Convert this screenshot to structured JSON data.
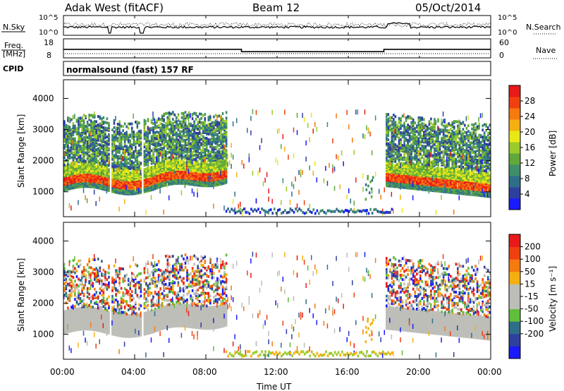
{
  "header": {
    "title_left": "Adak West (fitACF)",
    "title_center": "Beam 12",
    "title_right": "05/Oct/2014"
  },
  "colors": {
    "ground_scatter": "#bebeb9",
    "power_scale": [
      "#1a1aff",
      "#2f3fa0",
      "#2f6e8a",
      "#3f8f6a",
      "#5fa83a",
      "#9acb2a",
      "#e8e818",
      "#f5b010",
      "#f57a10",
      "#f04010",
      "#e81a1a"
    ],
    "velocity_scale": [
      "#1a1aff",
      "#2f3fa0",
      "#2f6e8a",
      "#5fbf3a",
      "#bebeb9",
      "#bebeb9",
      "#f5b010",
      "#f57a10",
      "#f04010",
      "#e81a1a"
    ]
  },
  "chart_data": [
    {
      "id": "noise_panel",
      "type": "line",
      "left_label": "N.Sky",
      "right_label": "N.Search",
      "left_ticks": [
        "10^5",
        "10^0"
      ],
      "right_ticks": [
        "10^5",
        "10^0"
      ]
    },
    {
      "id": "freq_panel",
      "type": "line",
      "left_label_line1": "Freq.",
      "left_label_line2": "[MHz]",
      "right_label": "Nave",
      "left_ticks": [
        "18",
        "8"
      ],
      "right_ticks": [
        "60",
        "0"
      ],
      "freq_series": {
        "x_hours": [
          0,
          10.0,
          10.0,
          18.0,
          18.0,
          24
        ],
        "y_mhz": [
          13.5,
          13.5,
          12.0,
          12.0,
          13.5,
          13.5
        ]
      }
    },
    {
      "id": "cpid_panel",
      "type": "table",
      "label": "CPID",
      "text": "normalsound (fast) 157 RF"
    },
    {
      "id": "power_panel",
      "type": "heatmap",
      "ylabel": "Slant Range [km]",
      "yticks": [
        "1000",
        "2000",
        "3000",
        "4000"
      ],
      "ylim": [
        200,
        4600
      ],
      "colorbar_label": "Power [dB]",
      "colorbar_ticks": [
        "28",
        "24",
        "20",
        "16",
        "12",
        "8",
        "4"
      ],
      "colorbar_range": [
        0,
        32
      ]
    },
    {
      "id": "velocity_panel",
      "type": "heatmap",
      "ylabel": "Slant Range [km]",
      "yticks": [
        "1000",
        "2000",
        "3000",
        "4000"
      ],
      "ylim": [
        200,
        4600
      ],
      "colorbar_label": "Velocity [m s⁻¹]",
      "colorbar_ticks": [
        "200",
        "100",
        "50",
        "15",
        "-15",
        "-50",
        "-100",
        "-200"
      ],
      "colorbar_range": [
        -250,
        250
      ]
    },
    {
      "id": "time_axis",
      "xlabel": "Time UT",
      "xticks": [
        "00:00",
        "04:00",
        "08:00",
        "12:00",
        "16:00",
        "20:00",
        "00:00"
      ],
      "xlim_hours": [
        0,
        24
      ]
    }
  ]
}
